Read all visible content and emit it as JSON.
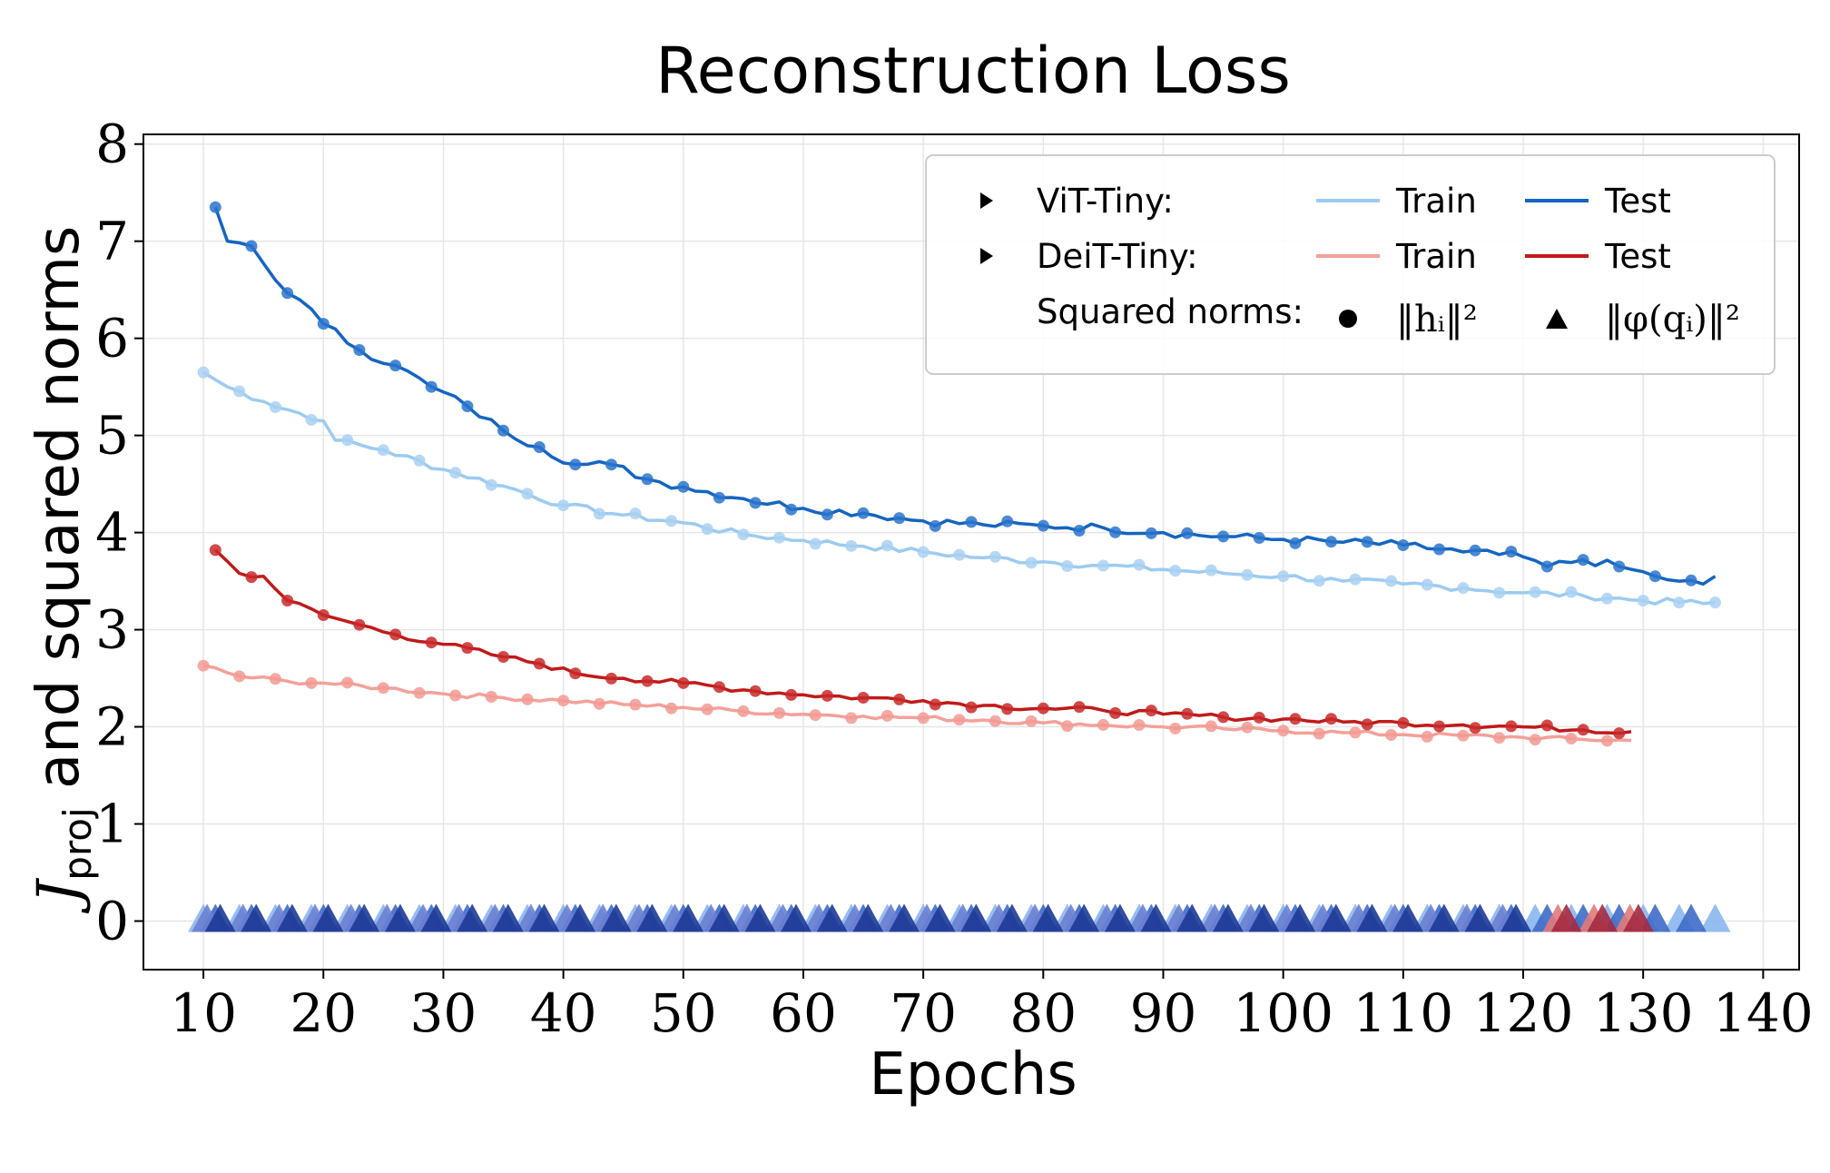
{
  "chart_data": {
    "type": "line",
    "title": "Reconstruction Loss",
    "xlabel": "Epochs",
    "ylabel": "J_proj and squared norms",
    "ylabel_main": "J",
    "ylabel_sub": "proj",
    "ylabel_rest": " and squared norms",
    "xlim": [
      5,
      143
    ],
    "ylim": [
      -0.5,
      8.1
    ],
    "xticks": [
      10,
      20,
      30,
      40,
      50,
      60,
      70,
      80,
      90,
      100,
      110,
      120,
      130,
      140
    ],
    "yticks": [
      0,
      1,
      2,
      3,
      4,
      5,
      6,
      7,
      8
    ],
    "grid": true,
    "legend_position": "top-right",
    "legend": {
      "row1_label": "ViT-Tiny:",
      "row2_label": "DeiT-Tiny:",
      "row3_label": "Squared norms:",
      "train_label": "Train",
      "test_label": "Test",
      "h_norm_label": "‖h_i‖²",
      "h_norm_label_display": "‖hᵢ‖²",
      "phi_norm_label": "‖φ(q_i)‖²",
      "phi_norm_label_display": "‖φ(qᵢ)‖²"
    },
    "series": [
      {
        "name": "ViT-Tiny Train",
        "color": "#9ccbf1",
        "marker_color": "#a9d1f2",
        "keypoints": [
          [
            10,
            5.65
          ],
          [
            12,
            5.5
          ],
          [
            15,
            5.35
          ],
          [
            20,
            5.15
          ],
          [
            21,
            4.95
          ],
          [
            25,
            4.85
          ],
          [
            30,
            4.65
          ],
          [
            35,
            4.48
          ],
          [
            40,
            4.28
          ],
          [
            45,
            4.18
          ],
          [
            50,
            4.1
          ],
          [
            55,
            3.98
          ],
          [
            60,
            3.92
          ],
          [
            65,
            3.86
          ],
          [
            70,
            3.8
          ],
          [
            75,
            3.74
          ],
          [
            80,
            3.7
          ],
          [
            85,
            3.66
          ],
          [
            90,
            3.62
          ],
          [
            95,
            3.58
          ],
          [
            100,
            3.55
          ],
          [
            105,
            3.5
          ],
          [
            110,
            3.47
          ],
          [
            115,
            3.43
          ],
          [
            120,
            3.38
          ],
          [
            125,
            3.35
          ],
          [
            130,
            3.3
          ],
          [
            135,
            3.27
          ],
          [
            136,
            3.28
          ]
        ],
        "noise": 0.035,
        "x_start": 10,
        "x_end": 136,
        "marker_start": 10,
        "marker_step": 3
      },
      {
        "name": "ViT-Tiny Test",
        "color": "#1565c0",
        "marker_color": "#2a74cc",
        "keypoints": [
          [
            11,
            7.35
          ],
          [
            12,
            7.0
          ],
          [
            14,
            6.95
          ],
          [
            16,
            6.6
          ],
          [
            18,
            6.4
          ],
          [
            20,
            6.15
          ],
          [
            23,
            5.88
          ],
          [
            26,
            5.72
          ],
          [
            29,
            5.5
          ],
          [
            32,
            5.3
          ],
          [
            35,
            5.05
          ],
          [
            38,
            4.88
          ],
          [
            41,
            4.7
          ],
          [
            44,
            4.7
          ],
          [
            47,
            4.55
          ],
          [
            50,
            4.47
          ],
          [
            55,
            4.35
          ],
          [
            60,
            4.25
          ],
          [
            65,
            4.2
          ],
          [
            70,
            4.12
          ],
          [
            75,
            4.08
          ],
          [
            80,
            4.07
          ],
          [
            85,
            4.05
          ],
          [
            90,
            4.0
          ],
          [
            95,
            3.96
          ],
          [
            100,
            3.93
          ],
          [
            105,
            3.9
          ],
          [
            110,
            3.87
          ],
          [
            115,
            3.8
          ],
          [
            120,
            3.75
          ],
          [
            122,
            3.65
          ],
          [
            125,
            3.72
          ],
          [
            128,
            3.65
          ],
          [
            131,
            3.55
          ],
          [
            133,
            3.5
          ],
          [
            135,
            3.47
          ],
          [
            136,
            3.55
          ]
        ],
        "noise": 0.045,
        "x_start": 11,
        "x_end": 136,
        "marker_start": 11,
        "marker_step": 3
      },
      {
        "name": "DeiT-Tiny Train",
        "color": "#f4a09a",
        "marker_color": "#f29a93",
        "keypoints": [
          [
            10,
            2.63
          ],
          [
            13,
            2.52
          ],
          [
            17,
            2.47
          ],
          [
            20,
            2.45
          ],
          [
            25,
            2.4
          ],
          [
            30,
            2.34
          ],
          [
            35,
            2.3
          ],
          [
            40,
            2.27
          ],
          [
            45,
            2.23
          ],
          [
            50,
            2.2
          ],
          [
            55,
            2.16
          ],
          [
            60,
            2.13
          ],
          [
            65,
            2.11
          ],
          [
            70,
            2.09
          ],
          [
            75,
            2.07
          ],
          [
            80,
            2.04
          ],
          [
            85,
            2.02
          ],
          [
            90,
            2.0
          ],
          [
            95,
            1.98
          ],
          [
            100,
            1.96
          ],
          [
            105,
            1.94
          ],
          [
            110,
            1.92
          ],
          [
            115,
            1.91
          ],
          [
            120,
            1.89
          ],
          [
            125,
            1.87
          ],
          [
            129,
            1.86
          ]
        ],
        "noise": 0.025,
        "x_start": 10,
        "x_end": 129,
        "marker_start": 10,
        "marker_step": 3
      },
      {
        "name": "DeiT-Tiny Test",
        "color": "#c01a1a",
        "marker_color": "#c92a2a",
        "keypoints": [
          [
            11,
            3.82
          ],
          [
            13,
            3.58
          ],
          [
            15,
            3.55
          ],
          [
            17,
            3.3
          ],
          [
            20,
            3.15
          ],
          [
            23,
            3.05
          ],
          [
            26,
            2.95
          ],
          [
            30,
            2.85
          ],
          [
            35,
            2.72
          ],
          [
            38,
            2.65
          ],
          [
            41,
            2.55
          ],
          [
            45,
            2.5
          ],
          [
            50,
            2.45
          ],
          [
            55,
            2.38
          ],
          [
            60,
            2.33
          ],
          [
            65,
            2.3
          ],
          [
            70,
            2.27
          ],
          [
            75,
            2.22
          ],
          [
            80,
            2.19
          ],
          [
            85,
            2.17
          ],
          [
            90,
            2.13
          ],
          [
            95,
            2.1
          ],
          [
            100,
            2.08
          ],
          [
            105,
            2.05
          ],
          [
            110,
            2.04
          ],
          [
            115,
            2.02
          ],
          [
            120,
            2.0
          ],
          [
            125,
            1.97
          ],
          [
            129,
            1.95
          ]
        ],
        "noise": 0.03,
        "x_start": 11,
        "x_end": 129,
        "marker_start": 11,
        "marker_step": 3
      }
    ],
    "triangle_series": [
      {
        "name": "ViT-Tiny Train φ-norm",
        "color": "#8ab6ee",
        "value": 0.0,
        "x_start": 10,
        "x_end": 136,
        "step": 3,
        "offset": 0.0
      },
      {
        "name": "ViT-Tiny Test φ-norm",
        "color": "#3e6bc9",
        "value": 0.0,
        "x_start": 11,
        "x_end": 136,
        "step": 3,
        "offset": 0.0
      },
      {
        "name": "DeiT-Tiny Train φ-norm",
        "color": "#6c7fd1",
        "value": 0.0,
        "x_start": 10,
        "x_end": 120,
        "step": 3,
        "offset": 0.3
      },
      {
        "name": "DeiT-Tiny Test φ-norm",
        "color": "#1d3a96",
        "value": 0.0,
        "x_start": 11,
        "x_end": 120,
        "step": 3,
        "offset": 0.4
      },
      {
        "name": "DeiT-Tiny tail Train",
        "color": "#e07a7a",
        "value": 0.0,
        "x_start": 122,
        "x_end": 129,
        "step": 3,
        "offset": 0.9
      },
      {
        "name": "DeiT-Tiny tail Test",
        "color": "#a52a40",
        "value": 0.0,
        "x_start": 123,
        "x_end": 129,
        "step": 3,
        "offset": 0.6
      }
    ]
  }
}
